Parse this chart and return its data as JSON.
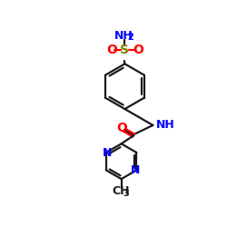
{
  "background": "#ffffff",
  "bond_color": "#1a1a1a",
  "N_color": "#0000ff",
  "O_color": "#ff0000",
  "S_color": "#808000",
  "text_color": "#1a1a1a",
  "figsize": [
    2.5,
    2.5
  ],
  "dpi": 100,
  "xlim": [
    0,
    10
  ],
  "ylim": [
    0,
    10
  ]
}
